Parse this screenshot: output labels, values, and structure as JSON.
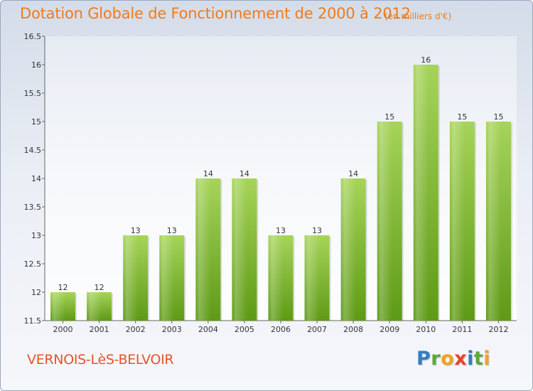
{
  "header": {
    "title": "Dotation Globale de Fonctionnement de 2000 à 2012",
    "unit": "(en milliers d'€)"
  },
  "footer": {
    "commune": "VERNOIS-LèS-BELVOIR",
    "logo": {
      "letters": [
        "P",
        "r",
        "o",
        "x",
        "i",
        "t",
        "i"
      ],
      "colors": [
        "#2f7fc4",
        "#5aa83c",
        "#f2a21c",
        "#e8432a",
        "#2f7fc4",
        "#5aa83c",
        "#f2a21c"
      ]
    }
  },
  "colors": {
    "bar_top": "#a6d45a",
    "bar_bottom": "#5e9a16",
    "title": "#f07a1a",
    "commune": "#e4542a"
  },
  "chart_data": {
    "type": "bar",
    "categories": [
      "2000",
      "2001",
      "2002",
      "2003",
      "2004",
      "2005",
      "2006",
      "2007",
      "2008",
      "2009",
      "2010",
      "2011",
      "2012"
    ],
    "values": [
      12,
      12,
      13,
      13,
      14,
      14,
      13,
      13,
      14,
      15,
      16,
      15,
      15
    ],
    "value_labels": [
      "12",
      "12",
      "13",
      "13",
      "14",
      "14",
      "13",
      "13",
      "14",
      "15",
      "16",
      "15",
      "15"
    ],
    "ylim": [
      11.5,
      16.5
    ],
    "yticks": [
      "11.5",
      "12",
      "12.5",
      "13",
      "13.5",
      "14",
      "14.5",
      "15",
      "15.5",
      "16",
      "16.5"
    ],
    "grid": false
  }
}
